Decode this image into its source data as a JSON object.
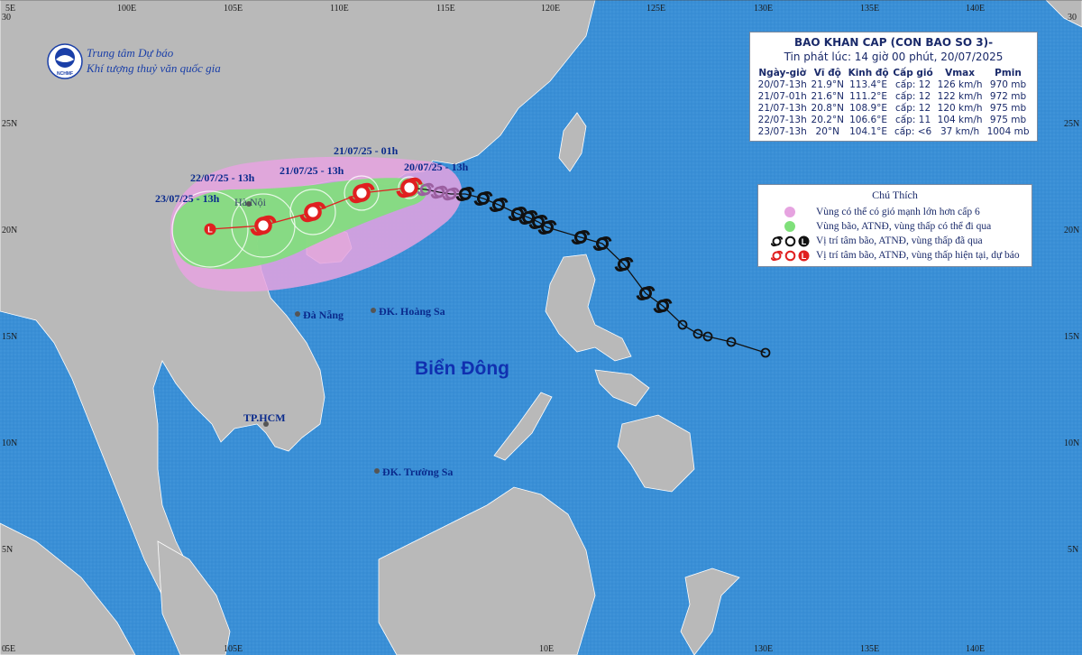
{
  "organization": {
    "logo_text": "NCHMF",
    "line1": "Trung tâm Dự báo",
    "line2": "Khí tượng thuỷ văn quốc gia"
  },
  "axes": {
    "top_labels": [
      "5E",
      "100E",
      "105E",
      "110E",
      "115E",
      "120E",
      "125E",
      "130E",
      "135E",
      "140E"
    ],
    "bottom_labels": [
      "5E",
      "105E",
      "10E",
      "130E",
      "135E",
      "140E"
    ],
    "left_labels": [
      "30",
      "25N",
      "20N",
      "15N",
      "10N",
      "5N",
      "0"
    ],
    "right_labels": [
      "30",
      "25N",
      "20N",
      "15N",
      "10N",
      "5N"
    ]
  },
  "places": {
    "ha_noi": "Hà Nội",
    "da_nang": "Đà Nẵng",
    "hoang_sa": "ĐK. Hoàng Sa",
    "hcm": "TP.HCM",
    "truong_sa": "ĐK. Trường Sa",
    "sea": "Biển Đông"
  },
  "forecast_labels": {
    "f1": "20/07/25 - 13h",
    "f2": "21/07/25 - 01h",
    "f3": "21/07/25 - 13h",
    "f4": "22/07/25 - 13h",
    "f5": "23/07/25 - 13h"
  },
  "info": {
    "title": "BAO KHAN CAP (CON BAO SO 3)-",
    "subtitle": "Tin phát lúc: 14 giờ 00 phút, 20/07/2025",
    "headers": [
      "Ngày-giờ",
      "Vĩ độ",
      "Kinh độ",
      "Cấp gió",
      "Vmax",
      "Pmin"
    ],
    "rows": [
      [
        "20/07-13h",
        "21.9°N",
        "113.4°E",
        "cấp: 12",
        "126 km/h",
        "970 mb"
      ],
      [
        "21/07-01h",
        "21.6°N",
        "111.2°E",
        "cấp: 12",
        "122 km/h",
        "972 mb"
      ],
      [
        "21/07-13h",
        "20.8°N",
        "108.9°E",
        "cấp: 12",
        "120 km/h",
        "975 mb"
      ],
      [
        "22/07-13h",
        "20.2°N",
        "106.6°E",
        "cấp: 11",
        "104 km/h",
        "975 mb"
      ],
      [
        "23/07-13h",
        "20°N",
        "104.1°E",
        "cấp: <6",
        "37 km/h",
        "1004 mb"
      ]
    ]
  },
  "legend": {
    "title": "Chú Thích",
    "items": [
      "Vùng có thể có gió mạnh lớn hơn cấp 6",
      "Vùng bão, ATNĐ, vùng thấp có thể đi qua",
      "Vị trí tâm bão, ATNĐ, vùng thấp đã qua",
      "Vị trí tâm bão, ATNĐ, vùng thấp hiện tại, dự báo"
    ],
    "low_letter": "L"
  },
  "colors": {
    "sea": "#3a8fd6",
    "land": "#b9b9b9",
    "wind_zone": "#e6a3e0",
    "storm_zone": "#7fe07a",
    "track_past": "#111111",
    "track_forecast": "#e02020"
  }
}
